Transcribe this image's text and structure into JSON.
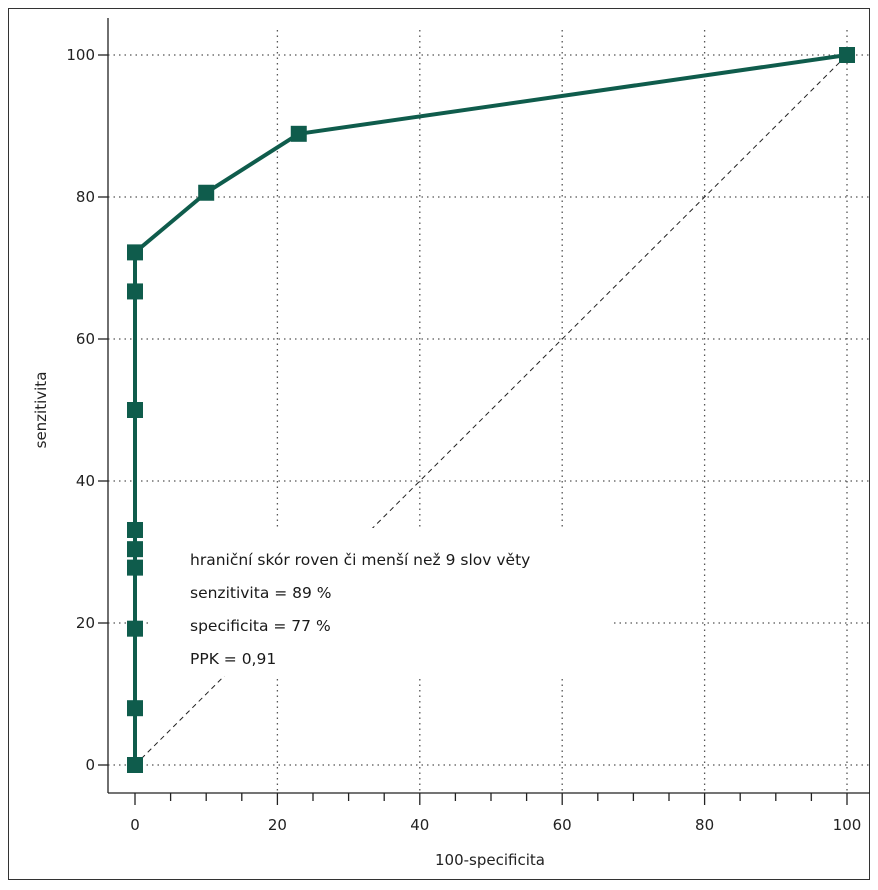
{
  "chart_data": {
    "type": "line",
    "title": "",
    "xlabel": "100-specificita",
    "ylabel": "senzitivita",
    "xlim": [
      0,
      100
    ],
    "ylim": [
      0,
      100
    ],
    "xticks": [
      "0",
      "20",
      "40",
      "60",
      "80",
      "100"
    ],
    "yticks": [
      "0",
      "20",
      "40",
      "60",
      "80",
      "100"
    ],
    "grid": true,
    "series": [
      {
        "color": "#0f5c4c",
        "points": [
          {
            "x": 0,
            "y": 0
          },
          {
            "x": 0,
            "y": 8
          },
          {
            "x": 0,
            "y": 19.2
          },
          {
            "x": 0,
            "y": 27.8
          },
          {
            "x": 0,
            "y": 30.4
          },
          {
            "x": 0,
            "y": 33.1
          },
          {
            "x": 0,
            "y": 50
          },
          {
            "x": 0,
            "y": 66.7
          },
          {
            "x": 0,
            "y": 72.2
          },
          {
            "x": 10,
            "y": 80.6
          },
          {
            "x": 23,
            "y": 88.9
          },
          {
            "x": 100,
            "y": 100
          }
        ]
      }
    ],
    "reference_line": {
      "from": [
        0,
        0
      ],
      "to": [
        100,
        100
      ]
    },
    "annotations": [
      "hraniční skór roven či menší než 9 slov věty",
      "senzitivita = 89 %",
      "specificita = 77 %",
      "PPK = 0,91"
    ]
  }
}
